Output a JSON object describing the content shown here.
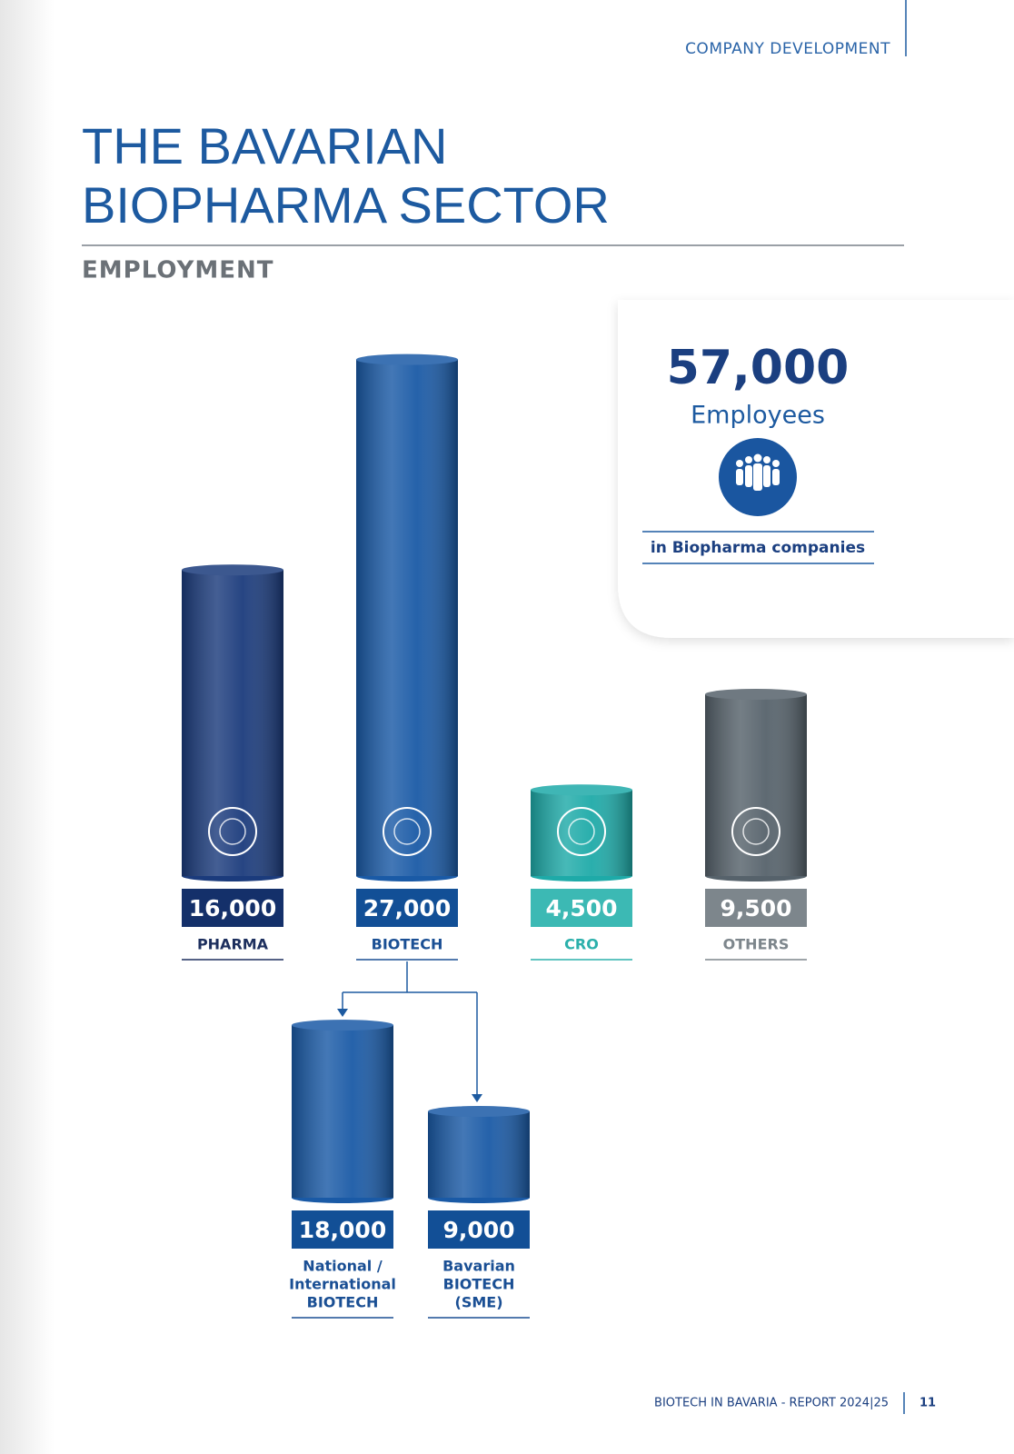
{
  "header": {
    "section": "COMPANY DEVELOPMENT",
    "title": [
      "THE BAVARIAN",
      "BIOPHARMA SECTOR"
    ],
    "subtitle": "EMPLOYMENT"
  },
  "summary": {
    "value": "57,000",
    "unit": "Employees",
    "caption": "in Biopharma companies"
  },
  "chart_data": [
    {
      "type": "bar",
      "categories": [
        [
          "PHARMA"
        ],
        [
          "BIOTECH"
        ],
        [
          "CRO"
        ],
        [
          "OTHERS"
        ]
      ],
      "values": [
        16000,
        27000,
        4500,
        9500
      ],
      "value_labels": [
        "16,000",
        "27,000",
        "4,500",
        "9,500"
      ],
      "colors": [
        "#1b3b7c",
        "#1a5aa6",
        "#1eaaa8",
        "#56626b"
      ]
    },
    {
      "type": "bar",
      "categories": [
        [
          "National /",
          "International",
          "BIOTECH"
        ],
        [
          "Bavarian",
          "BIOTECH",
          "(SME)"
        ]
      ],
      "values": [
        18000,
        9000
      ],
      "value_labels": [
        "18,000",
        "9,000"
      ],
      "colors": [
        "#1a5aa6",
        "#1a5aa6"
      ]
    }
  ],
  "footer": {
    "report": "BIOTECH IN BAVARIA - REPORT 2024|25",
    "page": "11"
  }
}
